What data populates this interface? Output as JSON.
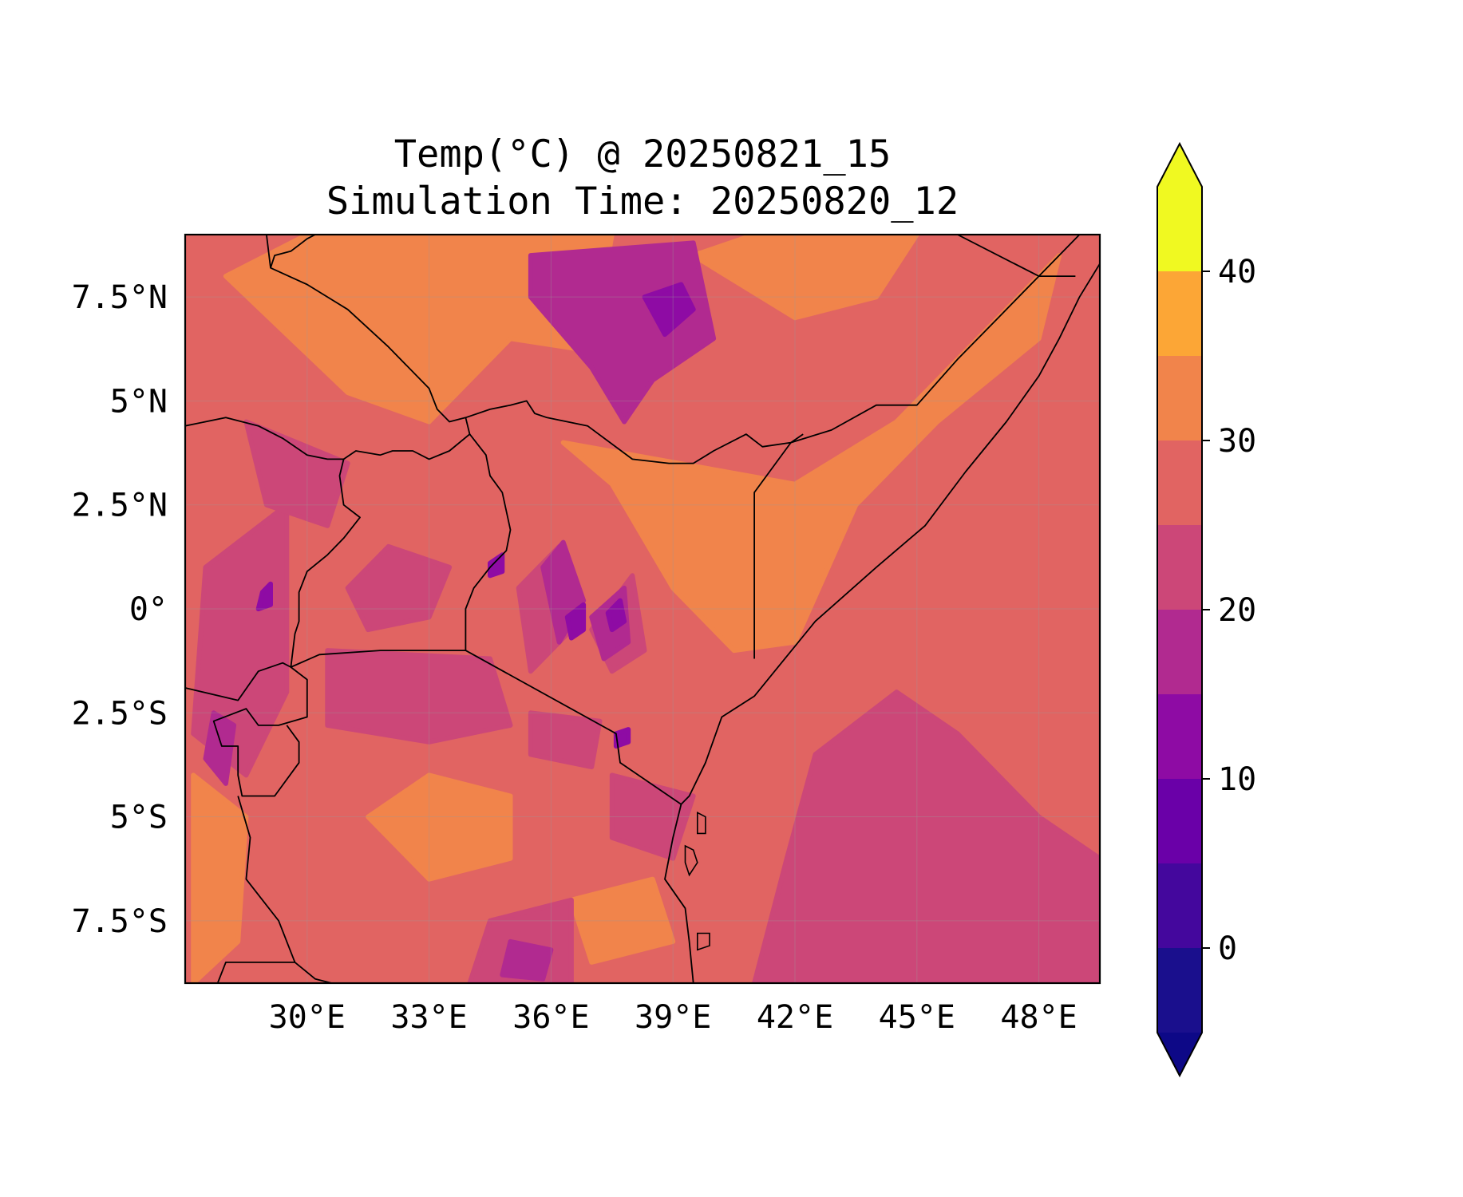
{
  "title": {
    "line1": "Temp(°C) @ 20250821_15",
    "line2": "Simulation Time: 20250820_12"
  },
  "map": {
    "lon_range": [
      27.0,
      49.5
    ],
    "lat_range": [
      -9.0,
      9.0
    ],
    "lon_ticks": [
      {
        "value": 30,
        "label": "30°E"
      },
      {
        "value": 33,
        "label": "33°E"
      },
      {
        "value": 36,
        "label": "36°E"
      },
      {
        "value": 39,
        "label": "39°E"
      },
      {
        "value": 42,
        "label": "42°E"
      },
      {
        "value": 45,
        "label": "45°E"
      },
      {
        "value": 48,
        "label": "48°E"
      }
    ],
    "lat_ticks": [
      {
        "value": 7.5,
        "label": "7.5°N"
      },
      {
        "value": 5,
        "label": "5°N"
      },
      {
        "value": 2.5,
        "label": "2.5°N"
      },
      {
        "value": 0,
        "label": "0°"
      },
      {
        "value": -2.5,
        "label": "2.5°S"
      },
      {
        "value": -5,
        "label": "5°S"
      },
      {
        "value": -7.5,
        "label": "7.5°S"
      }
    ],
    "gridlines": true,
    "regions": [
      {
        "level": 30,
        "ring": [
          [
            31,
            5.2
          ],
          [
            33,
            4.5
          ],
          [
            35,
            6.5
          ],
          [
            37,
            6.2
          ],
          [
            37.5,
            9
          ],
          [
            30,
            9
          ],
          [
            28,
            8
          ]
        ]
      },
      {
        "level": 30,
        "ring": [
          [
            42,
            3
          ],
          [
            44.5,
            4.5
          ],
          [
            46,
            6
          ],
          [
            48.5,
            8.5
          ],
          [
            48,
            6.5
          ],
          [
            45.5,
            4.5
          ],
          [
            43.5,
            2.5
          ],
          [
            42,
            -0.8
          ],
          [
            40.5,
            -1
          ],
          [
            39,
            0.5
          ],
          [
            37.5,
            3
          ],
          [
            36.3,
            4
          ]
        ]
      },
      {
        "level": 30,
        "ring": [
          [
            39.5,
            8.5
          ],
          [
            41,
            9
          ],
          [
            45,
            9
          ],
          [
            44,
            7.5
          ],
          [
            42,
            7
          ]
        ]
      },
      {
        "level": 30,
        "ring": [
          [
            33,
            -4
          ],
          [
            35,
            -4.5
          ],
          [
            35,
            -6
          ],
          [
            33,
            -6.5
          ],
          [
            31.5,
            -5
          ]
        ]
      },
      {
        "level": 30,
        "ring": [
          [
            36.5,
            -7
          ],
          [
            38.5,
            -6.5
          ],
          [
            39,
            -8
          ],
          [
            37,
            -8.5
          ]
        ]
      },
      {
        "level": 30,
        "ring": [
          [
            27.2,
            -4
          ],
          [
            28.5,
            -5
          ],
          [
            28.3,
            -8
          ],
          [
            27.2,
            -9
          ]
        ]
      },
      {
        "level": 20,
        "ring": [
          [
            42.5,
            -3.5
          ],
          [
            44.5,
            -2
          ],
          [
            46,
            -3
          ],
          [
            48,
            -5
          ],
          [
            49.5,
            -6
          ],
          [
            49.5,
            -9
          ],
          [
            41,
            -9
          ],
          [
            41.8,
            -6
          ]
        ]
      },
      {
        "level": 20,
        "ring": [
          [
            30.5,
            -1
          ],
          [
            34.5,
            -1.2
          ],
          [
            35,
            -2.8
          ],
          [
            33,
            -3.2
          ],
          [
            30.5,
            -2.8
          ]
        ]
      },
      {
        "level": 20,
        "ring": [
          [
            27.5,
            1
          ],
          [
            29.5,
            2.5
          ],
          [
            29.5,
            -2
          ],
          [
            28.5,
            -4
          ],
          [
            27.2,
            -3
          ]
        ]
      },
      {
        "level": 20,
        "ring": [
          [
            28.5,
            4.5
          ],
          [
            31,
            3.5
          ],
          [
            30.5,
            2
          ],
          [
            29,
            2.5
          ]
        ]
      },
      {
        "level": 20,
        "ring": [
          [
            31.5,
            -0.5
          ],
          [
            33,
            -0.2
          ],
          [
            33.5,
            1
          ],
          [
            32,
            1.5
          ],
          [
            31,
            0.5
          ]
        ]
      },
      {
        "level": 20,
        "ring": [
          [
            34.5,
            -7.5
          ],
          [
            36.5,
            -7
          ],
          [
            36.5,
            -9
          ],
          [
            34,
            -9
          ]
        ]
      },
      {
        "level": 20,
        "ring": [
          [
            37.5,
            -4
          ],
          [
            39.5,
            -4.5
          ],
          [
            39,
            -6
          ],
          [
            37.5,
            -5.5
          ]
        ]
      },
      {
        "level": 20,
        "ring": [
          [
            35.2,
            0.5
          ],
          [
            36.2,
            1.5
          ],
          [
            36.5,
            -0.5
          ],
          [
            35.5,
            -1.5
          ]
        ]
      },
      {
        "level": 20,
        "ring": [
          [
            37,
            -0.5
          ],
          [
            38,
            0.8
          ],
          [
            38.3,
            -1
          ],
          [
            37.5,
            -1.5
          ]
        ]
      },
      {
        "level": 20,
        "ring": [
          [
            35.5,
            -2.5
          ],
          [
            37.2,
            -2.7
          ],
          [
            37,
            -3.8
          ],
          [
            35.5,
            -3.5
          ]
        ]
      },
      {
        "level": 15,
        "ring": [
          [
            35.5,
            8.5
          ],
          [
            39.5,
            8.8
          ],
          [
            40,
            6.5
          ],
          [
            38.5,
            5.5
          ],
          [
            37.8,
            4.5
          ],
          [
            37,
            5.8
          ],
          [
            35.5,
            7.5
          ]
        ]
      },
      {
        "level": 15,
        "ring": [
          [
            35.8,
            1
          ],
          [
            36.3,
            1.6
          ],
          [
            36.8,
            0.2
          ],
          [
            36.2,
            -0.8
          ]
        ]
      },
      {
        "level": 15,
        "ring": [
          [
            37,
            -0.2
          ],
          [
            37.8,
            0.5
          ],
          [
            37.9,
            -0.8
          ],
          [
            37.3,
            -1.2
          ]
        ]
      },
      {
        "level": 15,
        "ring": [
          [
            27.7,
            -2.5
          ],
          [
            28.2,
            -2.8
          ],
          [
            28,
            -4.2
          ],
          [
            27.5,
            -3.6
          ]
        ]
      },
      {
        "level": 15,
        "ring": [
          [
            35,
            -8
          ],
          [
            36,
            -8.2
          ],
          [
            35.8,
            -8.9
          ],
          [
            34.8,
            -8.8
          ]
        ]
      },
      {
        "level": 10,
        "ring": [
          [
            38.3,
            7.5
          ],
          [
            39.2,
            7.8
          ],
          [
            39.5,
            7.2
          ],
          [
            38.8,
            6.6
          ]
        ]
      },
      {
        "level": 10,
        "ring": [
          [
            37.4,
            -0.1
          ],
          [
            37.7,
            0.2
          ],
          [
            37.8,
            -0.3
          ],
          [
            37.5,
            -0.5
          ]
        ]
      },
      {
        "level": 10,
        "ring": [
          [
            36.4,
            -0.2
          ],
          [
            36.8,
            0.1
          ],
          [
            36.8,
            -0.5
          ],
          [
            36.5,
            -0.7
          ]
        ]
      },
      {
        "level": 10,
        "ring": [
          [
            37.6,
            -3
          ],
          [
            37.9,
            -2.9
          ],
          [
            37.9,
            -3.2
          ],
          [
            37.6,
            -3.3
          ]
        ]
      },
      {
        "level": 10,
        "ring": [
          [
            34.5,
            1.1
          ],
          [
            34.8,
            1.3
          ],
          [
            34.8,
            0.9
          ],
          [
            34.5,
            0.8
          ]
        ]
      },
      {
        "level": 10,
        "ring": [
          [
            28.9,
            0.4
          ],
          [
            29.1,
            0.6
          ],
          [
            29.1,
            0.1
          ],
          [
            28.8,
            0.0
          ]
        ]
      }
    ],
    "borders": [
      [
        [
          27,
          4.4
        ],
        [
          28,
          4.6
        ],
        [
          28.8,
          4.4
        ],
        [
          29.4,
          4.1
        ],
        [
          30,
          3.7
        ],
        [
          30.5,
          3.6
        ],
        [
          30.9,
          3.6
        ],
        [
          31.2,
          3.8
        ],
        [
          31.8,
          3.7
        ],
        [
          32.1,
          3.8
        ],
        [
          32.6,
          3.8
        ],
        [
          33,
          3.6
        ],
        [
          33.5,
          3.8
        ],
        [
          34,
          4.2
        ]
      ],
      [
        [
          30.9,
          3.6
        ],
        [
          30.8,
          3.2
        ],
        [
          30.9,
          2.5
        ],
        [
          31.3,
          2.2
        ],
        [
          30.9,
          1.7
        ],
        [
          30.5,
          1.3
        ],
        [
          30,
          0.9
        ],
        [
          29.8,
          0.4
        ],
        [
          29.8,
          -0.3
        ],
        [
          29.7,
          -0.6
        ],
        [
          29.6,
          -1.4
        ]
      ],
      [
        [
          34,
          4.2
        ],
        [
          33.9,
          4.6
        ],
        [
          34.5,
          4.8
        ],
        [
          35,
          4.9
        ],
        [
          35.4,
          5
        ],
        [
          35.6,
          4.7
        ],
        [
          35.9,
          4.6
        ],
        [
          36.9,
          4.4
        ],
        [
          38,
          3.6
        ],
        [
          38.9,
          3.5
        ],
        [
          39.5,
          3.5
        ],
        [
          40,
          3.8
        ],
        [
          40.8,
          4.2
        ],
        [
          41.2,
          3.9
        ],
        [
          41.9,
          4
        ],
        [
          42.2,
          4.2
        ]
      ],
      [
        [
          34,
          4.2
        ],
        [
          34.4,
          3.7
        ],
        [
          34.5,
          3.2
        ],
        [
          34.8,
          2.8
        ],
        [
          35,
          1.9
        ],
        [
          34.9,
          1.4
        ],
        [
          34.5,
          1
        ],
        [
          34.1,
          0.5
        ],
        [
          33.9,
          0
        ],
        [
          33.9,
          -1
        ]
      ],
      [
        [
          29.6,
          -1.4
        ],
        [
          30.3,
          -1.1
        ],
        [
          31.8,
          -1
        ],
        [
          33.9,
          -1
        ],
        [
          37.6,
          -3
        ],
        [
          37.7,
          -3.7
        ],
        [
          39.2,
          -4.7
        ]
      ],
      [
        [
          41,
          -1.2
        ],
        [
          41,
          2.8
        ],
        [
          41.9,
          4
        ]
      ],
      [
        [
          41.9,
          4
        ],
        [
          42.9,
          4.3
        ],
        [
          44,
          4.9
        ],
        [
          45,
          4.9
        ],
        [
          46,
          6
        ],
        [
          47,
          7
        ],
        [
          48,
          8
        ],
        [
          49,
          9
        ]
      ],
      [
        [
          29,
          9
        ],
        [
          29.1,
          8.2
        ],
        [
          30,
          7.8
        ],
        [
          31,
          7.2
        ],
        [
          32,
          6.3
        ],
        [
          33,
          5.3
        ],
        [
          33.2,
          4.8
        ],
        [
          33.5,
          4.5
        ],
        [
          33.9,
          4.6
        ]
      ],
      [
        [
          29.1,
          8.2
        ],
        [
          29.2,
          8.5
        ],
        [
          29.6,
          8.6
        ],
        [
          30,
          8.9
        ],
        [
          30.2,
          9
        ]
      ],
      [
        [
          46,
          9
        ],
        [
          48,
          8
        ],
        [
          48.9,
          8
        ]
      ],
      [
        [
          49.5,
          8.3
        ],
        [
          49,
          7.5
        ],
        [
          48.5,
          6.5
        ],
        [
          48,
          5.6
        ],
        [
          47.2,
          4.5
        ],
        [
          46.2,
          3.3
        ],
        [
          45.2,
          2
        ],
        [
          44,
          1
        ],
        [
          42.5,
          -0.3
        ],
        [
          41.5,
          -1.5
        ],
        [
          41,
          -2.1
        ],
        [
          40.2,
          -2.6
        ],
        [
          39.8,
          -3.7
        ],
        [
          39.4,
          -4.5
        ],
        [
          39.2,
          -4.7
        ],
        [
          39,
          -5.5
        ],
        [
          38.8,
          -6.5
        ],
        [
          39.3,
          -7.2
        ],
        [
          39.4,
          -8
        ],
        [
          39.5,
          -9
        ]
      ],
      [
        [
          27,
          -1.9
        ],
        [
          28.3,
          -2.2
        ],
        [
          28.8,
          -1.5
        ],
        [
          29.4,
          -1.3
        ],
        [
          29.6,
          -1.4
        ],
        [
          30,
          -1.7
        ],
        [
          30,
          -2.6
        ],
        [
          29.3,
          -2.8
        ],
        [
          28.8,
          -2.8
        ],
        [
          28.5,
          -2.4
        ],
        [
          27.7,
          -2.7
        ],
        [
          27.9,
          -3.3
        ],
        [
          28.3,
          -3.3
        ],
        [
          28.3,
          -4
        ],
        [
          28.4,
          -4.5
        ],
        [
          28.7,
          -4.5
        ],
        [
          29.2,
          -4.5
        ],
        [
          29.8,
          -3.7
        ],
        [
          29.8,
          -3.2
        ],
        [
          29.5,
          -2.8
        ]
      ],
      [
        [
          28.3,
          -4.5
        ],
        [
          28.6,
          -5.5
        ],
        [
          28.5,
          -6.5
        ],
        [
          28.9,
          -7
        ],
        [
          29.3,
          -7.5
        ],
        [
          29.5,
          -8
        ],
        [
          29.7,
          -8.5
        ],
        [
          30.2,
          -8.9
        ],
        [
          30.6,
          -9
        ]
      ],
      [
        [
          27.8,
          -9
        ],
        [
          28,
          -8.5
        ],
        [
          29.7,
          -8.5
        ]
      ]
    ],
    "islands": [
      [
        [
          39.3,
          -5.7
        ],
        [
          39.5,
          -5.8
        ],
        [
          39.6,
          -6.1
        ],
        [
          39.4,
          -6.4
        ],
        [
          39.3,
          -6.1
        ]
      ],
      [
        [
          39.6,
          -4.9
        ],
        [
          39.8,
          -5
        ],
        [
          39.8,
          -5.4
        ],
        [
          39.6,
          -5.4
        ]
      ],
      [
        [
          39.6,
          -7.8
        ],
        [
          39.9,
          -7.8
        ],
        [
          39.9,
          -8.1
        ],
        [
          39.6,
          -8.2
        ]
      ]
    ]
  },
  "colorbar": {
    "levels": [
      -5,
      0,
      5,
      10,
      15,
      20,
      25,
      30,
      35,
      40,
      45
    ],
    "colors": [
      "#1a0f8d",
      "#44079d",
      "#6a00a8",
      "#8e0ba4",
      "#b12a90",
      "#cc4778",
      "#e16462",
      "#f1844b",
      "#fca636",
      "#f0f921"
    ],
    "under_color": "#0d0887",
    "over_color": "#f0f921",
    "tick_labels": [
      {
        "value": 0,
        "label": "0"
      },
      {
        "value": 10,
        "label": "10"
      },
      {
        "value": 20,
        "label": "20"
      },
      {
        "value": 30,
        "label": "30"
      },
      {
        "value": 40,
        "label": "40"
      }
    ]
  },
  "background_level": 25,
  "colors": {
    "border": "#000000",
    "gridline": "#9a9a9a"
  }
}
